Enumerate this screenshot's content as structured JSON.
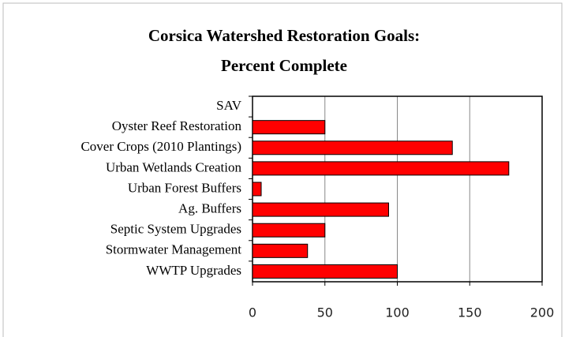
{
  "chart_data": {
    "type": "hbar",
    "title_lines": [
      "Corsica Watershed Restoration Goals:",
      "Percent Complete"
    ],
    "categories": [
      "SAV",
      "Oyster Reef Restoration",
      "Cover Crops (2010 Plantings)",
      "Urban Wetlands Creation",
      "Urban Forest Buffers",
      "Ag. Buffers",
      "Septic System Upgrades",
      "Stormwater Management",
      "WWTP Upgrades"
    ],
    "values": [
      0,
      50,
      138,
      177,
      6,
      94,
      50,
      38,
      100
    ],
    "color": "#ff0000",
    "xlim": [
      0,
      200
    ],
    "xticks": [
      0,
      50,
      100,
      150,
      200
    ],
    "grid": true
  }
}
